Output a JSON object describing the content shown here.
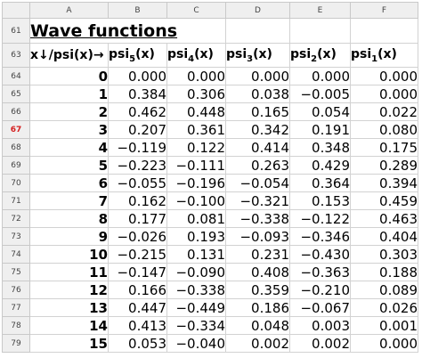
{
  "columns": [
    "A",
    "B",
    "C",
    "D",
    "E",
    "F"
  ],
  "title": {
    "row": "61",
    "text": "Wave functions"
  },
  "header": {
    "row": "63",
    "x_label": "x↓/psi(x)→",
    "psi": [
      {
        "base": "psi",
        "sub": "5",
        "tail": "(x)"
      },
      {
        "base": "psi",
        "sub": "4",
        "tail": "(x)"
      },
      {
        "base": "psi",
        "sub": "3",
        "tail": "(x)"
      },
      {
        "base": "psi",
        "sub": "2",
        "tail": "(x)"
      },
      {
        "base": "psi",
        "sub": "1",
        "tail": "(x)"
      }
    ]
  },
  "active_row": "67",
  "rows": [
    {
      "num": "64",
      "x": "0",
      "vals": [
        "0.000",
        "0.000",
        "0.000",
        "0.000",
        "0.000"
      ]
    },
    {
      "num": "65",
      "x": "1",
      "vals": [
        "0.384",
        "0.306",
        "0.038",
        "−0.005",
        "0.000"
      ]
    },
    {
      "num": "66",
      "x": "2",
      "vals": [
        "0.462",
        "0.448",
        "0.165",
        "0.054",
        "0.022"
      ]
    },
    {
      "num": "67",
      "x": "3",
      "vals": [
        "0.207",
        "0.361",
        "0.342",
        "0.191",
        "0.080"
      ]
    },
    {
      "num": "68",
      "x": "4",
      "vals": [
        "−0.119",
        "0.122",
        "0.414",
        "0.348",
        "0.175"
      ]
    },
    {
      "num": "69",
      "x": "5",
      "vals": [
        "−0.223",
        "−0.111",
        "0.263",
        "0.429",
        "0.289"
      ]
    },
    {
      "num": "70",
      "x": "6",
      "vals": [
        "−0.055",
        "−0.196",
        "−0.054",
        "0.364",
        "0.394"
      ]
    },
    {
      "num": "71",
      "x": "7",
      "vals": [
        "0.162",
        "−0.100",
        "−0.321",
        "0.153",
        "0.459"
      ]
    },
    {
      "num": "72",
      "x": "8",
      "vals": [
        "0.177",
        "0.081",
        "−0.338",
        "−0.122",
        "0.463"
      ]
    },
    {
      "num": "73",
      "x": "9",
      "vals": [
        "−0.026",
        "0.193",
        "−0.093",
        "−0.346",
        "0.404"
      ]
    },
    {
      "num": "74",
      "x": "10",
      "vals": [
        "−0.215",
        "0.131",
        "0.231",
        "−0.430",
        "0.303"
      ]
    },
    {
      "num": "75",
      "x": "11",
      "vals": [
        "−0.147",
        "−0.090",
        "0.408",
        "−0.363",
        "0.188"
      ]
    },
    {
      "num": "76",
      "x": "12",
      "vals": [
        "0.166",
        "−0.338",
        "0.359",
        "−0.210",
        "0.089"
      ]
    },
    {
      "num": "77",
      "x": "13",
      "vals": [
        "0.447",
        "−0.449",
        "0.186",
        "−0.067",
        "0.026"
      ]
    },
    {
      "num": "78",
      "x": "14",
      "vals": [
        "0.413",
        "−0.334",
        "0.048",
        "0.003",
        "0.001"
      ]
    },
    {
      "num": "79",
      "x": "15",
      "vals": [
        "0.053",
        "−0.040",
        "0.002",
        "0.002",
        "0.000"
      ]
    }
  ]
}
